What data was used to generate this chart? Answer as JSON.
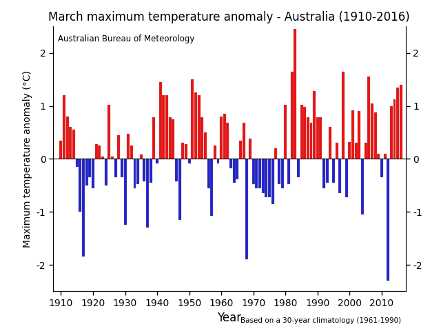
{
  "title": "March maximum temperature anomaly - Australia (1910-2016)",
  "xlabel": "Year",
  "ylabel": "Maximum temperature anomaly (°C)",
  "annotation_top_left": "Australian Bureau of Meteorology",
  "annotation_bottom_right": "Based on a 30-year climatology (1961-1990)",
  "years": [
    1910,
    1911,
    1912,
    1913,
    1914,
    1915,
    1916,
    1917,
    1918,
    1919,
    1920,
    1921,
    1922,
    1923,
    1924,
    1925,
    1926,
    1927,
    1928,
    1929,
    1930,
    1931,
    1932,
    1933,
    1934,
    1935,
    1936,
    1937,
    1938,
    1939,
    1940,
    1941,
    1942,
    1943,
    1944,
    1945,
    1946,
    1947,
    1948,
    1949,
    1950,
    1951,
    1952,
    1953,
    1954,
    1955,
    1956,
    1957,
    1958,
    1959,
    1960,
    1961,
    1962,
    1963,
    1964,
    1965,
    1966,
    1967,
    1968,
    1969,
    1970,
    1971,
    1972,
    1973,
    1974,
    1975,
    1976,
    1977,
    1978,
    1979,
    1980,
    1981,
    1982,
    1983,
    1984,
    1985,
    1986,
    1987,
    1988,
    1989,
    1990,
    1991,
    1992,
    1993,
    1994,
    1995,
    1996,
    1997,
    1998,
    1999,
    2000,
    2001,
    2002,
    2003,
    2004,
    2005,
    2006,
    2007,
    2008,
    2009,
    2010,
    2011,
    2012,
    2013,
    2014,
    2015,
    2016
  ],
  "values": [
    0.35,
    1.2,
    0.8,
    0.6,
    0.55,
    -0.15,
    -1.0,
    -1.85,
    -0.5,
    -0.35,
    -0.55,
    0.28,
    0.25,
    0.05,
    -0.5,
    1.02,
    0.05,
    -0.35,
    0.45,
    -0.35,
    -1.25,
    0.48,
    0.25,
    -0.55,
    -0.48,
    0.08,
    -0.42,
    -1.3,
    -0.45,
    0.78,
    -0.08,
    1.45,
    1.2,
    1.2,
    0.78,
    0.75,
    -0.42,
    -1.15,
    0.3,
    0.28,
    -0.08,
    1.5,
    1.25,
    1.2,
    0.78,
    0.5,
    -0.55,
    -1.08,
    0.25,
    -0.08,
    0.8,
    0.85,
    0.68,
    -0.18,
    -0.45,
    -0.38,
    0.35,
    0.68,
    -1.9,
    0.38,
    -0.48,
    -0.55,
    -0.55,
    -0.65,
    -0.72,
    -0.72,
    -0.85,
    0.2,
    -0.48,
    -0.55,
    1.02,
    -0.48,
    1.65,
    2.45,
    -0.35,
    1.02,
    0.98,
    0.78,
    0.68,
    1.28,
    0.78,
    0.78,
    -0.55,
    -0.45,
    0.6,
    -0.45,
    0.3,
    -0.65,
    1.65,
    -0.72,
    0.32,
    0.92,
    0.3,
    0.9,
    -1.05,
    0.3,
    1.55,
    1.05,
    0.88,
    0.1,
    -0.35,
    0.1,
    -2.3,
    1.0,
    1.12,
    1.35,
    1.4
  ],
  "ylim": [
    -2.5,
    2.5
  ],
  "yticks": [
    -2,
    -1,
    0,
    1,
    2
  ],
  "positive_color": "#EE1111",
  "negative_color": "#2222CC",
  "bar_width": 0.85,
  "background_color": "#ffffff"
}
